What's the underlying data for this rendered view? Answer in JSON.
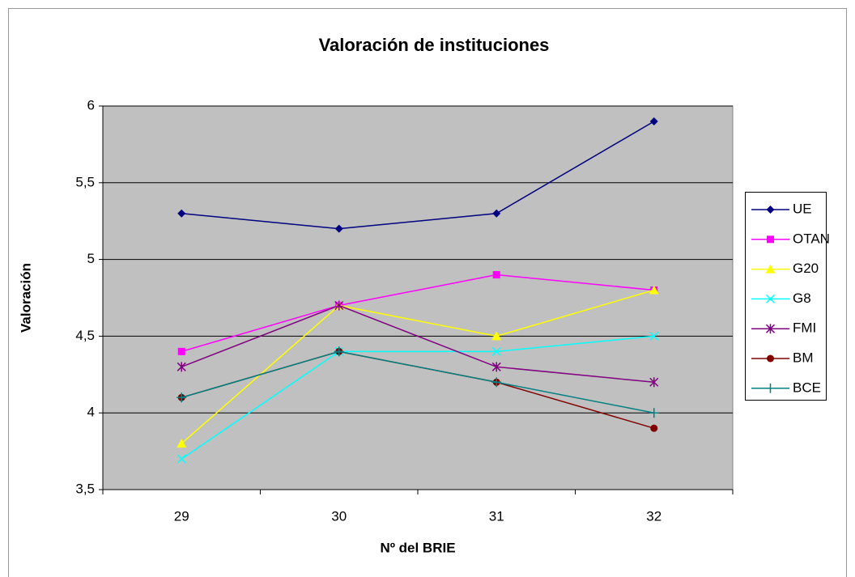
{
  "chart_data": {
    "type": "line",
    "title": "Valoración de instituciones",
    "x_label": "Nº del BRIE",
    "y_label": "Valoración",
    "categories": [
      "29",
      "30",
      "31",
      "32"
    ],
    "ylim": [
      3.5,
      6
    ],
    "yticks": [
      {
        "value": 3.5,
        "label": "3,5"
      },
      4,
      {
        "value": 4.5,
        "label": "4,5"
      },
      5,
      {
        "value": 5.5,
        "label": "5,5"
      },
      6
    ],
    "grid": true,
    "legend": "right",
    "series": [
      {
        "name": "UE",
        "color": "#000080",
        "marker": "diamond",
        "values": [
          5.3,
          5.2,
          5.3,
          5.9
        ]
      },
      {
        "name": "OTAN",
        "color": "#ff00ff",
        "marker": "square",
        "values": [
          4.4,
          4.7,
          4.9,
          4.8
        ]
      },
      {
        "name": "G20",
        "color": "#ffff00",
        "marker": "triangle",
        "values": [
          3.8,
          4.7,
          4.5,
          4.8
        ]
      },
      {
        "name": "G8",
        "color": "#00ffff",
        "marker": "x",
        "values": [
          3.7,
          4.4,
          4.4,
          4.5
        ]
      },
      {
        "name": "FMI",
        "color": "#800080",
        "marker": "star",
        "values": [
          4.3,
          4.7,
          4.3,
          4.2
        ]
      },
      {
        "name": "BM",
        "color": "#800000",
        "marker": "circle",
        "values": [
          4.1,
          4.4,
          4.2,
          3.9
        ]
      },
      {
        "name": "BCE",
        "color": "#008080",
        "marker": "plus",
        "values": [
          4.1,
          4.4,
          4.2,
          4.0
        ]
      }
    ]
  }
}
